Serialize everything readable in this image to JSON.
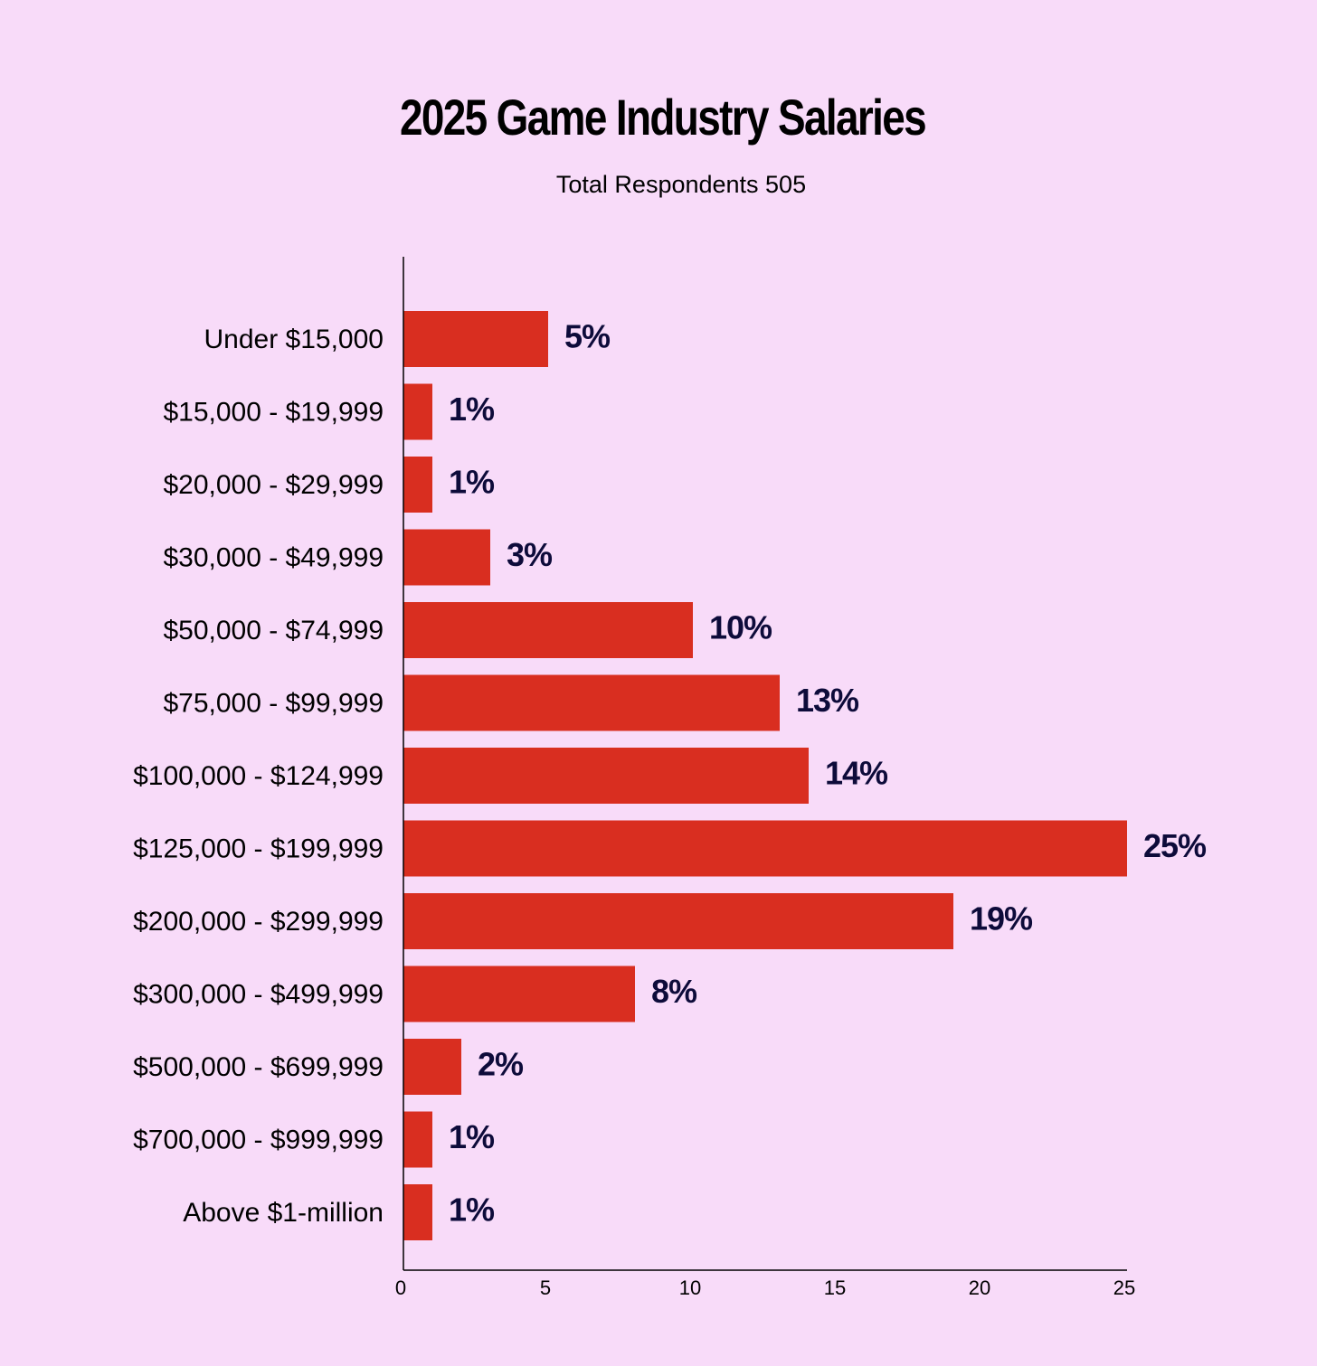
{
  "chart_data": {
    "type": "bar",
    "orientation": "horizontal",
    "title": "2025 Game Industry Salaries",
    "subtitle": "Total Respondents 505",
    "categories": [
      "Under $15,000",
      "$15,000 - $19,999",
      "$20,000 - $29,999",
      "$30,000 - $49,999",
      "$50,000 - $74,999",
      "$75,000 - $99,999",
      "$100,000 - $124,999",
      "$125,000 - $199,999",
      "$200,000 - $299,999",
      "$300,000 - $499,999",
      "$500,000 - $699,999",
      "$700,000 - $999,999",
      "Above $1-million"
    ],
    "values": [
      5,
      1,
      1,
      3,
      10,
      13,
      14,
      25,
      19,
      8,
      2,
      1,
      1
    ],
    "value_labels": [
      "5%",
      "1%",
      "1%",
      "3%",
      "10%",
      "13%",
      "14%",
      "25%",
      "19%",
      "8%",
      "2%",
      "1%",
      "1%"
    ],
    "xlim": [
      0,
      25
    ],
    "xticks": [
      0,
      5,
      10,
      15,
      20,
      25
    ],
    "xtick_labels": [
      "0",
      "5",
      "10",
      "15",
      "20",
      "25"
    ],
    "grid": false,
    "colors": {
      "background": "#f8dbf9",
      "bar": "#d92e20",
      "value_label": "#0d0b3a",
      "axis": "#000000"
    }
  }
}
